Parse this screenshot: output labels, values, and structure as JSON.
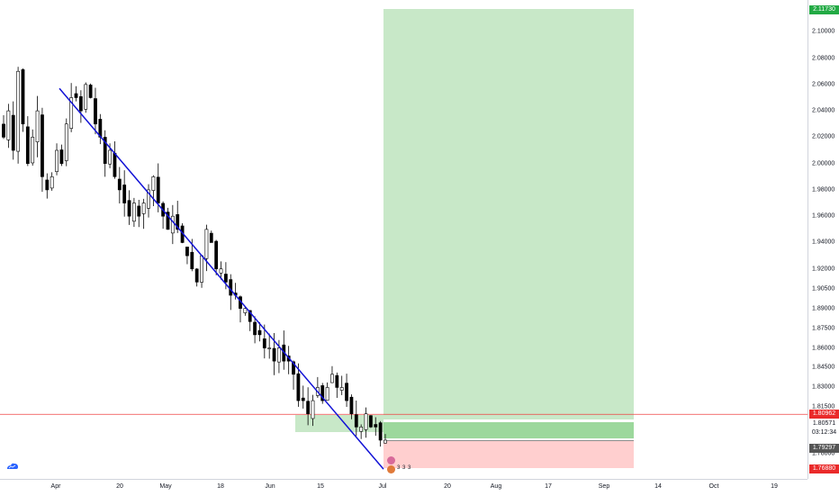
{
  "colors": {
    "up_candle": "#ffffff",
    "down_candle": "#000000",
    "wick": "#000000",
    "trendline": "#1212d6",
    "profit_zone": "#c8e8c8",
    "profit_zone_strong": "#9cd89c",
    "loss_zone": "#ffcfcf",
    "entry_box": "#c8e8c8",
    "stop_badge": "#ea2a2a",
    "target_badge": "#22aa44",
    "current_badge": "#555555",
    "horizontal_line": "#ef4040"
  },
  "price_axis": {
    "ticks": [
      "2.10000",
      "2.08000",
      "2.06000",
      "2.04000",
      "2.02000",
      "2.00000",
      "1.98000",
      "1.96000",
      "1.94000",
      "1.92000",
      "1.90500",
      "1.89000",
      "1.87500",
      "1.86000",
      "1.84500",
      "1.83000",
      "1.81500",
      "1.78000"
    ],
    "badges": [
      {
        "label": "2.11730",
        "kind": "target"
      },
      {
        "label": "1.80962",
        "kind": "stop"
      },
      {
        "label": "1.80571",
        "kind": "entry"
      },
      {
        "label": "03:12:34",
        "kind": "countdown"
      },
      {
        "label": "1.79297",
        "kind": "current"
      },
      {
        "label": "1.76880",
        "kind": "stop"
      }
    ]
  },
  "time_axis": {
    "labels": [
      "Apr",
      "20",
      "May",
      "18",
      "Jun",
      "15",
      "Jul",
      "20",
      "Aug",
      "17",
      "Sep",
      "14",
      "Oct",
      "19"
    ]
  },
  "chart_data": {
    "type": "candlestick",
    "title": "",
    "xlabel": "",
    "ylabel": "",
    "ylim": [
      1.768,
      2.118
    ],
    "x_ticks": [
      "Apr",
      "20",
      "May",
      "18",
      "Jun",
      "15",
      "Jul",
      "20",
      "Aug",
      "17",
      "Sep",
      "14",
      "Oct",
      "19"
    ],
    "trendline": {
      "from": {
        "x": "Apr",
        "y": 2.057
      },
      "to": {
        "x": "Jul",
        "y": 1.768
      }
    },
    "horizontal_line": 1.80962,
    "position": {
      "entry": 1.80571,
      "stop": 1.7688,
      "target": 2.1173,
      "current": 1.79297
    },
    "series": [
      {
        "values": [
          2.02,
          2.04,
          2.01,
          2.07,
          2.03,
          2.0,
          2.02,
          2.04,
          1.99,
          1.98,
          1.99,
          2.01,
          2.0,
          2.03,
          2.05,
          2.05,
          2.04,
          2.06,
          2.05,
          2.03,
          2.02,
          2.0,
          2.01,
          1.99,
          1.98,
          1.97,
          1.96,
          1.97,
          1.96,
          1.97,
          1.98,
          1.99,
          1.97,
          1.96,
          1.95,
          1.96,
          1.95,
          1.94,
          1.93,
          1.92,
          1.91,
          1.93,
          1.95,
          1.94,
          1.92,
          1.92,
          1.91,
          1.9,
          1.9,
          1.89,
          1.89,
          1.88,
          1.87,
          1.87,
          1.86,
          1.86,
          1.85,
          1.86,
          1.85,
          1.85,
          1.84,
          1.82,
          1.82,
          1.81,
          1.82,
          1.83,
          1.82,
          1.83,
          1.84,
          1.83,
          1.83,
          1.82,
          1.81,
          1.8,
          1.8,
          1.81,
          1.8,
          1.8,
          1.79,
          1.79
        ]
      }
    ]
  },
  "icons": {
    "logo": "tradingview-cloud-logo",
    "events": [
      "dividend-event-icon",
      "earnings-event-icon"
    ],
    "event_counts": [
      "3",
      "3",
      "3"
    ]
  }
}
